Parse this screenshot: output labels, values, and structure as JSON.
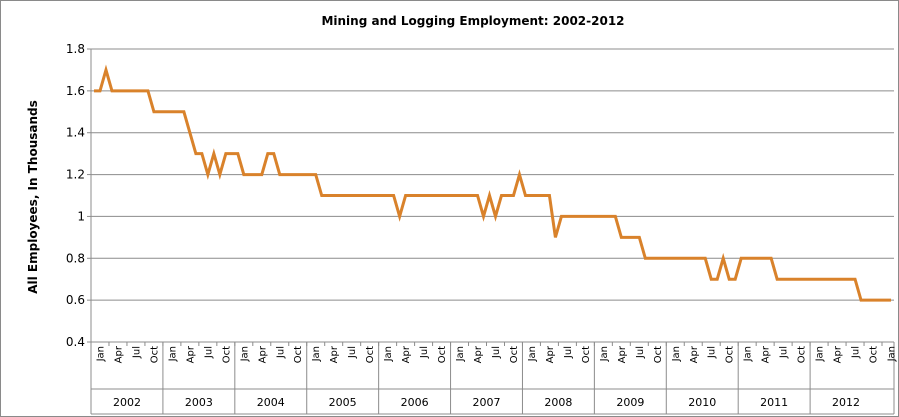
{
  "chart_data": {
    "type": "line",
    "title": "Mining and Logging Employment: 2002-2012",
    "xlabel": "",
    "ylabel": "All Employees, In Thousands",
    "ylim": [
      0.4,
      1.8
    ],
    "yticks": [
      "0.4",
      "0.6",
      "0.8",
      "1",
      "1.2",
      "1.4",
      "1.6",
      "1.8"
    ],
    "grid": true,
    "line_color": "#D9822B",
    "month_tick_labels": [
      "Jan",
      "Apr",
      "Jul",
      "Oct"
    ],
    "years": [
      "2002",
      "2003",
      "2004",
      "2005",
      "2006",
      "2007",
      "2008",
      "2009",
      "2010",
      "2011",
      "2012"
    ],
    "series": [
      {
        "values": [
          1.6,
          1.6,
          1.7,
          1.6,
          1.6,
          1.6,
          1.6,
          1.6,
          1.6,
          1.6,
          1.5,
          1.5,
          1.5,
          1.5,
          1.5,
          1.5,
          1.4,
          1.3,
          1.3,
          1.2,
          1.3,
          1.2,
          1.3,
          1.3,
          1.3,
          1.2,
          1.2,
          1.2,
          1.2,
          1.3,
          1.3,
          1.2,
          1.2,
          1.2,
          1.2,
          1.2,
          1.2,
          1.2,
          1.1,
          1.1,
          1.1,
          1.1,
          1.1,
          1.1,
          1.1,
          1.1,
          1.1,
          1.1,
          1.1,
          1.1,
          1.1,
          1.0,
          1.1,
          1.1,
          1.1,
          1.1,
          1.1,
          1.1,
          1.1,
          1.1,
          1.1,
          1.1,
          1.1,
          1.1,
          1.1,
          1.0,
          1.1,
          1.0,
          1.1,
          1.1,
          1.1,
          1.2,
          1.1,
          1.1,
          1.1,
          1.1,
          1.1,
          0.9,
          1.0,
          1.0,
          1.0,
          1.0,
          1.0,
          1.0,
          1.0,
          1.0,
          1.0,
          1.0,
          0.9,
          0.9,
          0.9,
          0.9,
          0.8,
          0.8,
          0.8,
          0.8,
          0.8,
          0.8,
          0.8,
          0.8,
          0.8,
          0.8,
          0.8,
          0.7,
          0.7,
          0.8,
          0.7,
          0.7,
          0.8,
          0.8,
          0.8,
          0.8,
          0.8,
          0.8,
          0.7,
          0.7,
          0.7,
          0.7,
          0.7,
          0.7,
          0.7,
          0.7,
          0.7,
          0.7,
          0.7,
          0.7,
          0.7,
          0.7,
          0.6,
          0.6,
          0.6,
          0.6,
          0.6,
          0.6
        ]
      }
    ]
  }
}
